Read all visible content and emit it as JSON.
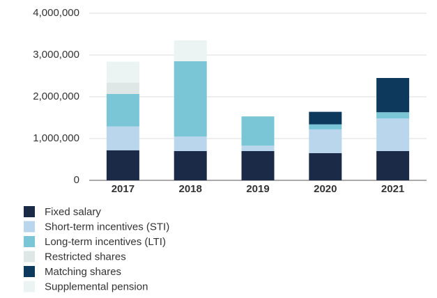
{
  "chart_data": {
    "type": "stacked_bar",
    "categories": [
      "2017",
      "2018",
      "2019",
      "2020",
      "2021"
    ],
    "series": [
      {
        "name": "Fixed salary",
        "color": "#1b2a47",
        "values": [
          720000,
          700000,
          700000,
          650000,
          700000
        ]
      },
      {
        "name": "Short-term incentives (STI)",
        "color": "#b9d6ec",
        "values": [
          570000,
          350000,
          130000,
          570000,
          780000
        ]
      },
      {
        "name": "Long-term incentives (LTI)",
        "color": "#7ac6d6",
        "values": [
          780000,
          1800000,
          700000,
          120000,
          150000
        ]
      },
      {
        "name": "Restricted shares",
        "color": "#dfe6e6",
        "values": [
          270000,
          0,
          0,
          0,
          0
        ]
      },
      {
        "name": "Matching shares",
        "color": "#0d3a5c",
        "values": [
          0,
          0,
          0,
          300000,
          820000
        ]
      },
      {
        "name": "Supplemental pension",
        "color": "#ebf3f3",
        "values": [
          500000,
          500000,
          0,
          0,
          0
        ]
      }
    ],
    "ylim": [
      0,
      4000000
    ],
    "yticks": [
      0,
      {
        "value": 1000000,
        "label": "1,000,000"
      },
      {
        "value": 2000000,
        "label": "2,000,000"
      },
      {
        "value": 3000000,
        "label": "3,000,000"
      },
      {
        "value": 4000000,
        "label": "4,000,000"
      }
    ],
    "grid": true,
    "legend": "bottom"
  }
}
